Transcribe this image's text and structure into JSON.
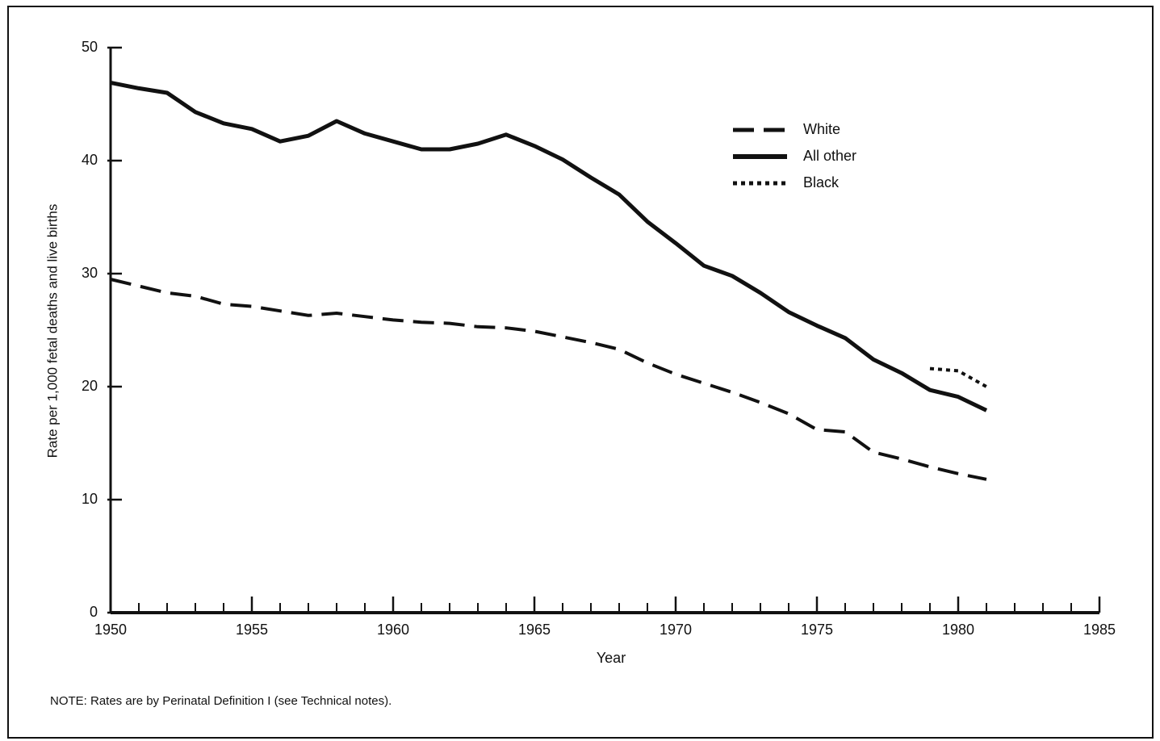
{
  "chart_data": {
    "type": "line",
    "y_label": "Rate per 1,000 fetal deaths and live births",
    "x_label": "Year",
    "note": "NOTE: Rates are by Perinatal Definition I (see Technical notes).",
    "x": [
      1950,
      1951,
      1952,
      1953,
      1954,
      1955,
      1956,
      1957,
      1958,
      1959,
      1960,
      1961,
      1962,
      1963,
      1964,
      1965,
      1966,
      1967,
      1968,
      1969,
      1970,
      1971,
      1972,
      1973,
      1974,
      1975,
      1976,
      1977,
      1978,
      1979,
      1980,
      1981
    ],
    "series": [
      {
        "name": "White",
        "color": "#111111",
        "style": "dashed",
        "values": [
          29.5,
          28.9,
          28.3,
          28.0,
          27.3,
          27.1,
          26.7,
          26.3,
          26.5,
          26.2,
          25.9,
          25.7,
          25.6,
          25.3,
          25.2,
          24.9,
          24.4,
          23.9,
          23.3,
          22.1,
          21.1,
          20.3,
          19.5,
          18.6,
          17.6,
          16.2,
          16.0,
          14.2,
          13.6,
          12.9,
          12.3,
          11.8
        ]
      },
      {
        "name": "All other",
        "color": "#111111",
        "style": "solid",
        "values": [
          46.9,
          46.4,
          46.0,
          44.3,
          43.3,
          42.8,
          41.7,
          42.2,
          43.5,
          42.4,
          41.7,
          41.0,
          41.0,
          41.5,
          42.3,
          41.3,
          40.1,
          38.5,
          37.0,
          34.6,
          32.7,
          30.7,
          29.8,
          28.3,
          26.6,
          25.4,
          24.3,
          22.4,
          21.2,
          19.7,
          19.1,
          17.9
        ]
      },
      {
        "name": "Black",
        "color": "#111111",
        "style": "dotted",
        "values": [
          null,
          null,
          null,
          null,
          null,
          null,
          null,
          null,
          null,
          null,
          null,
          null,
          null,
          null,
          null,
          null,
          null,
          null,
          null,
          null,
          null,
          null,
          null,
          null,
          null,
          null,
          null,
          null,
          null,
          21.6,
          21.4,
          20.0
        ]
      }
    ],
    "xlim": [
      1950,
      1985
    ],
    "xticks": [
      1950,
      1955,
      1960,
      1965,
      1970,
      1975,
      1980,
      1985
    ],
    "ylim": [
      0,
      50
    ],
    "yticks": [
      0,
      10,
      20,
      30,
      40,
      50
    ]
  }
}
